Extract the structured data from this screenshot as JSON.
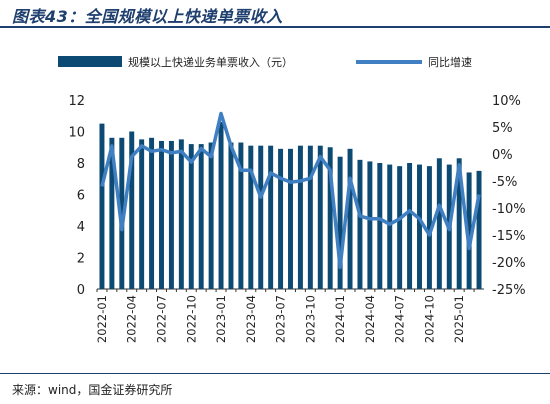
{
  "figure_title": "图表43：全国规模以上快递单票收入",
  "source": "来源：wind，国金证券研究所",
  "colors": {
    "bar": "#0d4a73",
    "line": "#3f7fc2",
    "rule": "#1f3f6e"
  },
  "chart_data": {
    "type": "bar+line",
    "title": "",
    "legend_position": "top",
    "grid": false,
    "categories": [
      "2022-01",
      "2022-02",
      "2022-03",
      "2022-04",
      "2022-05",
      "2022-06",
      "2022-07",
      "2022-08",
      "2022-09",
      "2022-10",
      "2022-11",
      "2022-12",
      "2023-01",
      "2023-02",
      "2023-03",
      "2023-04",
      "2023-05",
      "2023-06",
      "2023-07",
      "2023-08",
      "2023-09",
      "2023-10",
      "2023-11",
      "2023-12",
      "2024-01",
      "2024-02",
      "2024-03",
      "2024-04",
      "2024-05",
      "2024-06",
      "2024-07",
      "2024-08",
      "2024-09",
      "2024-10",
      "2024-11",
      "2024-12",
      "2025-01",
      "2025-02",
      "2025-03"
    ],
    "x_tick_labels": [
      "2022-01",
      "2022-04",
      "2022-07",
      "2022-10",
      "2023-01",
      "2023-04",
      "2023-07",
      "2023-10",
      "2024-01",
      "2024-04",
      "2024-07",
      "2024-10",
      "2025-01"
    ],
    "y_left": {
      "min": 0,
      "max": 12,
      "ticks": [
        0,
        2,
        4,
        6,
        8,
        10,
        12
      ]
    },
    "y_right": {
      "min": -25,
      "max": 10,
      "ticks": [
        -25,
        -20,
        -15,
        -10,
        -5,
        0,
        5,
        10
      ],
      "tick_suffix": "%"
    },
    "series": [
      {
        "name": "规模以上快递业务单票收入（元）",
        "type": "bar",
        "axis": "left",
        "values": [
          10.5,
          9.6,
          9.6,
          10.0,
          9.5,
          9.6,
          9.4,
          9.4,
          9.5,
          9.2,
          9.2,
          9.3,
          10.6,
          9.3,
          9.3,
          9.1,
          9.1,
          9.1,
          8.9,
          8.9,
          9.1,
          9.1,
          9.1,
          9.0,
          8.4,
          8.9,
          8.2,
          8.1,
          8.0,
          7.9,
          7.8,
          8.0,
          7.9,
          7.8,
          8.3,
          7.9,
          8.3,
          7.4,
          7.5
        ]
      },
      {
        "name": "同比增速",
        "type": "line",
        "axis": "right",
        "values": [
          -6,
          1.5,
          -14,
          -0.5,
          1.5,
          0.5,
          0.8,
          0.2,
          0.5,
          -1.5,
          1,
          -0.5,
          7.5,
          1.5,
          -3,
          -3,
          -8,
          -3.5,
          -4.5,
          -5.2,
          -5,
          -4.5,
          -0.5,
          -3,
          -21,
          -4.5,
          -11.5,
          -12,
          -12,
          -13,
          -12,
          -10.5,
          -12,
          -15,
          -9.5,
          -14,
          -2,
          -17.5,
          -7.5
        ]
      }
    ]
  }
}
